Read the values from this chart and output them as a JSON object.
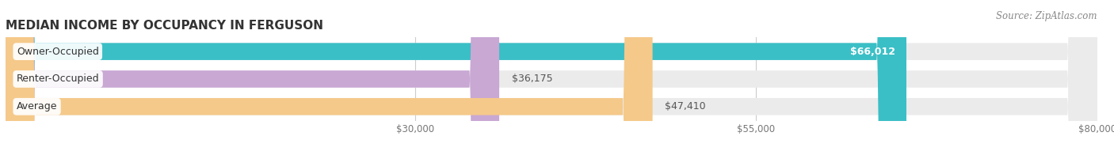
{
  "title": "MEDIAN INCOME BY OCCUPANCY IN FERGUSON",
  "source": "Source: ZipAtlas.com",
  "categories": [
    "Owner-Occupied",
    "Renter-Occupied",
    "Average"
  ],
  "values": [
    66012,
    36175,
    47410
  ],
  "bar_colors": [
    "#3bbfc6",
    "#c9a8d4",
    "#f5c98a"
  ],
  "bar_bg_color": "#ebebeb",
  "value_labels": [
    "$66,012",
    "$36,175",
    "$47,410"
  ],
  "xlim": [
    0,
    80000
  ],
  "xticks": [
    30000,
    55000,
    80000
  ],
  "xtick_labels": [
    "$30,000",
    "$55,000",
    "$80,000"
  ],
  "title_fontsize": 11,
  "label_fontsize": 9,
  "tick_fontsize": 8.5,
  "source_fontsize": 8.5,
  "background_color": "#ffffff",
  "bar_height": 0.62,
  "bar_label_color_inside": "#ffffff",
  "bar_label_color_outside": "#555555"
}
